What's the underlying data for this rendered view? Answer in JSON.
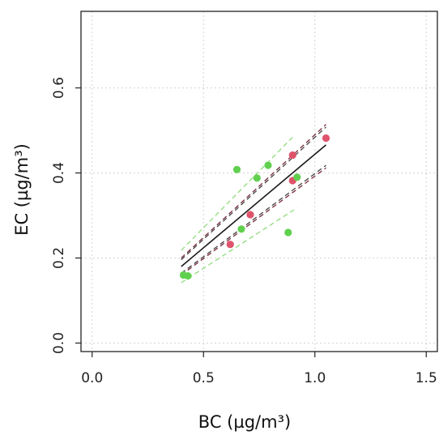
{
  "chart_data": {
    "type": "scatter",
    "title": "",
    "xlabel": "BC (µg/m³)",
    "ylabel": "EC (µg/m³)",
    "xlim": [
      -0.05,
      1.55
    ],
    "ylim": [
      -0.02,
      0.78
    ],
    "x_ticks": [
      0.0,
      0.5,
      1.0,
      1.5
    ],
    "x_tick_labels": [
      "0.0",
      "0.5",
      "1.0",
      "1.5"
    ],
    "y_ticks": [
      0.0,
      0.2,
      0.4,
      0.6
    ],
    "y_tick_labels": [
      "0.0",
      "0.2",
      "0.4",
      "0.6"
    ],
    "grid": true,
    "series": [
      {
        "color": "#df536b",
        "points": [
          {
            "x": 0.62,
            "y": 0.232
          },
          {
            "x": 0.71,
            "y": 0.302
          },
          {
            "x": 0.9,
            "y": 0.382
          },
          {
            "x": 0.9,
            "y": 0.442
          },
          {
            "x": 1.05,
            "y": 0.482
          }
        ]
      },
      {
        "color": "#61d04f",
        "points": [
          {
            "x": 0.41,
            "y": 0.16
          },
          {
            "x": 0.43,
            "y": 0.158
          },
          {
            "x": 0.65,
            "y": 0.408
          },
          {
            "x": 0.67,
            "y": 0.268
          },
          {
            "x": 0.74,
            "y": 0.388
          },
          {
            "x": 0.79,
            "y": 0.418
          },
          {
            "x": 0.88,
            "y": 0.26
          },
          {
            "x": 0.92,
            "y": 0.39
          }
        ]
      }
    ],
    "lines": [
      {
        "kind": "fit",
        "color": "#1a1a1a",
        "dash": "solid",
        "x": [
          0.4,
          1.05
        ],
        "y": [
          0.18,
          0.466
        ]
      },
      {
        "kind": "confidence-upper",
        "color": "#7a2a3a",
        "dash": "dashed",
        "x": [
          0.4,
          1.05
        ],
        "y": [
          0.2,
          0.514
        ]
      },
      {
        "kind": "confidence-lower",
        "color": "#7a2a3a",
        "dash": "dashed",
        "x": [
          0.4,
          1.05
        ],
        "y": [
          0.16,
          0.412
        ]
      },
      {
        "kind": "confidence-upper",
        "color": "#444444",
        "dash": "dashed",
        "x": [
          0.4,
          1.05
        ],
        "y": [
          0.196,
          0.508
        ]
      },
      {
        "kind": "confidence-lower",
        "color": "#444444",
        "dash": "dashed",
        "x": [
          0.4,
          1.05
        ],
        "y": [
          0.164,
          0.418
        ]
      },
      {
        "kind": "confidence-upper",
        "color": "#8fdc7a",
        "dash": "dashed",
        "x": [
          0.4,
          0.9
        ],
        "y": [
          0.218,
          0.484
        ]
      },
      {
        "kind": "confidence-lower",
        "color": "#8fdc7a",
        "dash": "dashed",
        "x": [
          0.4,
          0.92
        ],
        "y": [
          0.142,
          0.318
        ]
      }
    ]
  }
}
